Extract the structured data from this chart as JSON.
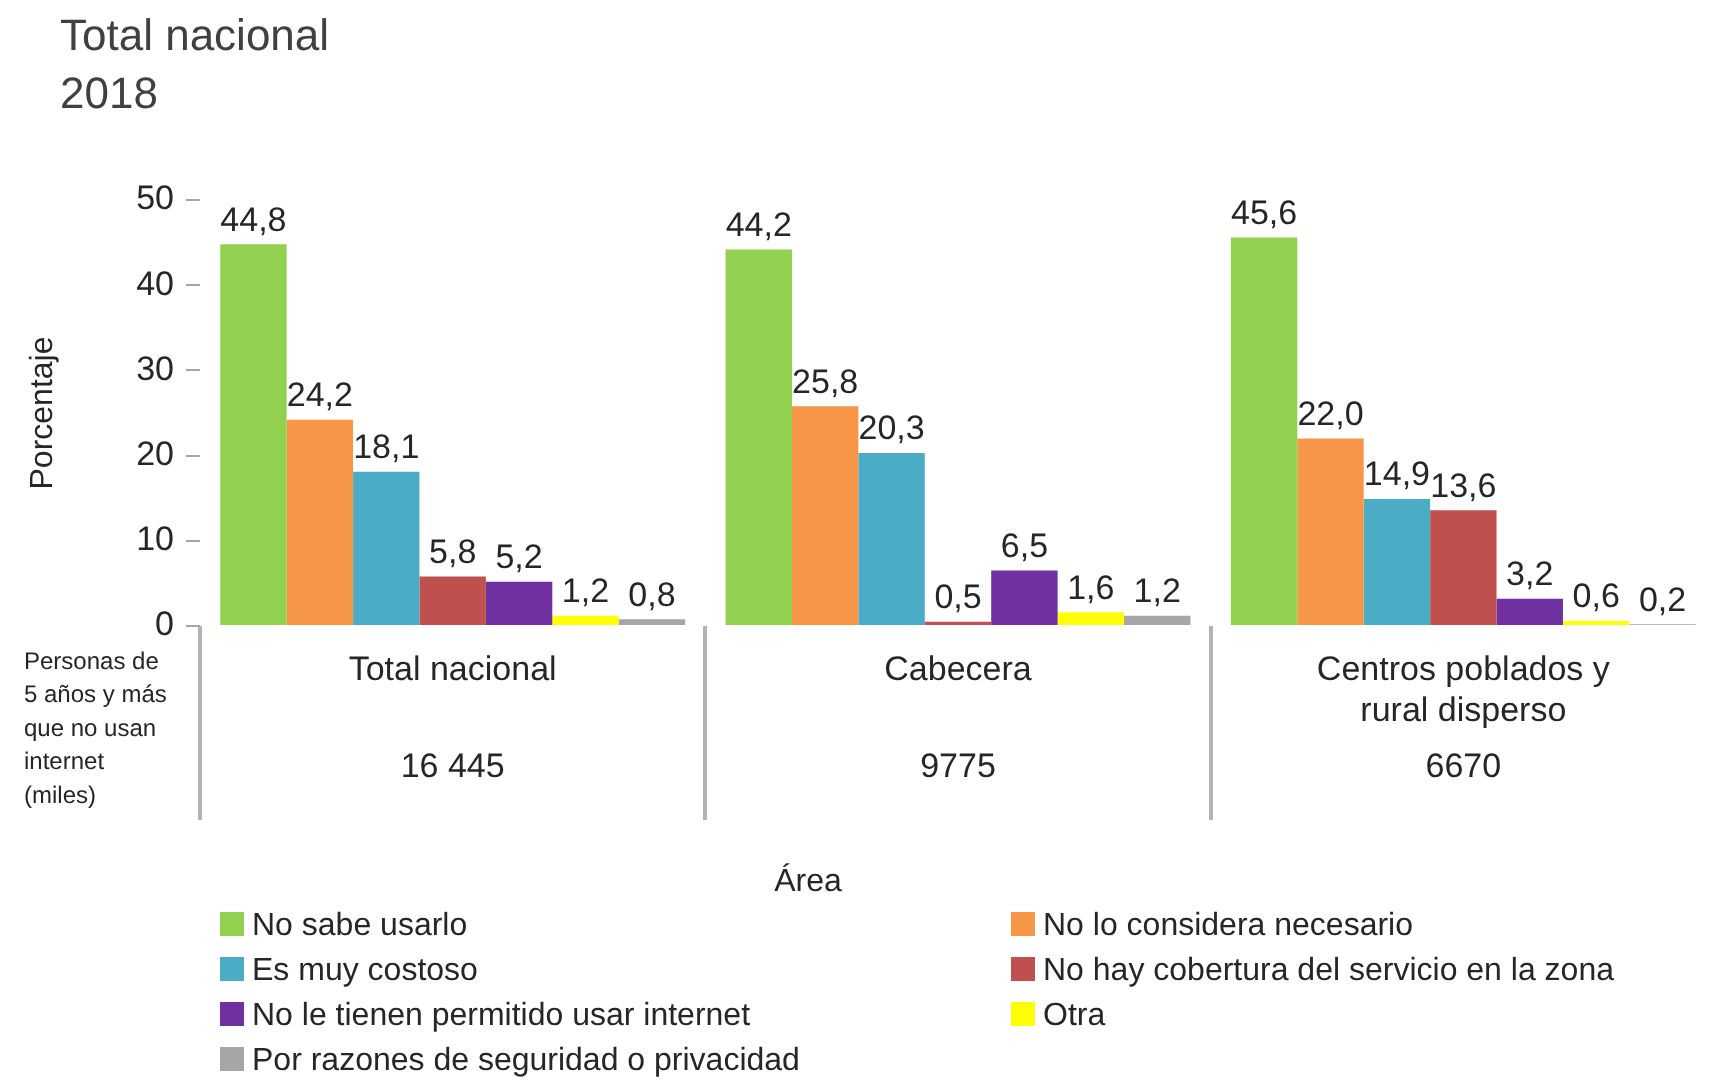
{
  "chart_data": {
    "type": "bar",
    "title": "Total nacional",
    "subtitle": "2018",
    "xlabel": "Área",
    "ylabel": "Porcentaje",
    "categories": [
      "Total nacional",
      "Cabecera",
      "Centros poblados y rural disperso"
    ],
    "series": [
      {
        "name": "No sabe usarlo",
        "color": "#92d050",
        "values": [
          44.8,
          44.2,
          45.6
        ],
        "value_labels": [
          "44,8",
          "44,2",
          "45,6"
        ]
      },
      {
        "name": "No lo considera necesario",
        "color": "#f79646",
        "values": [
          24.2,
          25.8,
          22.0
        ],
        "value_labels": [
          "24,2",
          "25,8",
          "22,0"
        ]
      },
      {
        "name": "Es muy costoso",
        "color": "#4bacc6",
        "values": [
          18.1,
          20.3,
          14.9
        ],
        "value_labels": [
          "18,1",
          "20,3",
          "14,9"
        ]
      },
      {
        "name": "No hay cobertura del servicio en la zona",
        "color": "#c0504d",
        "values": [
          5.8,
          0.5,
          13.6
        ],
        "value_labels": [
          "5,8",
          "0,5",
          "13,6"
        ]
      },
      {
        "name": "No le tienen permitido usar internet",
        "color": "#7030a0",
        "values": [
          5.2,
          6.5,
          3.2
        ],
        "value_labels": [
          "5,2",
          "6,5",
          "3,2"
        ]
      },
      {
        "name": "Otra",
        "color": "#ffff00",
        "values": [
          1.2,
          1.6,
          0.6
        ],
        "value_labels": [
          "1,2",
          "1,6",
          "0,6"
        ]
      },
      {
        "name": "Por razones de seguridad o privacidad",
        "color": "#a6a6a6",
        "values": [
          0.8,
          1.2,
          0.2
        ],
        "value_labels": [
          "0,8",
          "1,2",
          "0,2"
        ]
      }
    ],
    "ylim": [
      0,
      50
    ],
    "yticks": [
      0,
      10,
      20,
      30,
      40,
      50
    ],
    "legend": "bottom",
    "annotations": [
      "Personas de 5 años y más que no usan internet (miles)",
      "16 445",
      "9775",
      "6670"
    ]
  }
}
